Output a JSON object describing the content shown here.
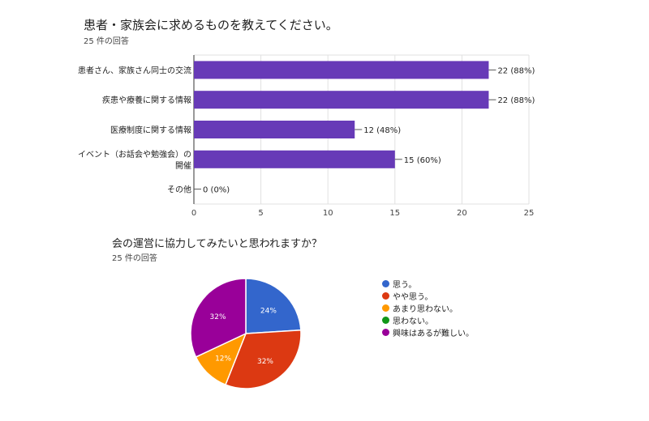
{
  "chart_data": [
    {
      "type": "bar",
      "title": "患者・家族会に求めるものを教えてください。",
      "subtitle": "25 件の回答",
      "categories": [
        [
          "患者さん、家族さん同士の交流"
        ],
        [
          "疾患や療養に関する情報"
        ],
        [
          "医療制度に関する情報"
        ],
        [
          "イベント（お話会や勉強会）の",
          "開催"
        ],
        [
          "その他"
        ]
      ],
      "values": [
        22,
        22,
        12,
        15,
        0
      ],
      "data_labels": [
        "22 (88%)",
        "22 (88%)",
        "12 (48%)",
        "15 (60%)",
        "0 (0%)"
      ],
      "xlim": [
        0,
        25
      ],
      "xticks": [
        "0",
        "5",
        "10",
        "15",
        "20",
        "25"
      ],
      "grid": true,
      "color": "#673ab7"
    },
    {
      "type": "pie",
      "title": "会の運営に協力してみたいと思われますか？",
      "subtitle": "25 件の回答",
      "slices": [
        {
          "label": "思う。",
          "value": 24,
          "text": "24%",
          "color": "#3366cc"
        },
        {
          "label": "やや思う。",
          "value": 32,
          "text": "32%",
          "color": "#dc3912"
        },
        {
          "label": "あまり思わない。",
          "value": 12,
          "text": "12%",
          "color": "#ff9900"
        },
        {
          "label": "思わない。",
          "value": 0,
          "text": "",
          "color": "#109618"
        },
        {
          "label": "興味はあるが難しい。",
          "value": 32,
          "text": "32%",
          "color": "#990099"
        }
      ]
    }
  ]
}
